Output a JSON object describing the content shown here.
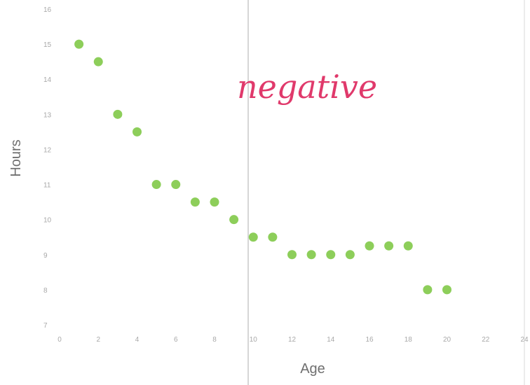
{
  "chart_data": {
    "type": "scatter",
    "title": "",
    "xlabel": "Age",
    "ylabel": "Hours",
    "xlim": [
      0,
      24
    ],
    "ylim": [
      7,
      16
    ],
    "x_ticks": [
      "0",
      "2",
      "4",
      "6",
      "8",
      "10",
      "12",
      "14",
      "16",
      "18",
      "20",
      "22",
      "24"
    ],
    "y_ticks": [
      "7",
      "8",
      "9",
      "10",
      "11",
      "12",
      "13",
      "14",
      "15",
      "16"
    ],
    "series": [
      {
        "color": "#8dce5a",
        "points": [
          {
            "x": 1,
            "y": 15
          },
          {
            "x": 2,
            "y": 14.5
          },
          {
            "x": 3,
            "y": 13
          },
          {
            "x": 4,
            "y": 12.5
          },
          {
            "x": 5,
            "y": 11
          },
          {
            "x": 6,
            "y": 11
          },
          {
            "x": 7,
            "y": 10.5
          },
          {
            "x": 8,
            "y": 10.5
          },
          {
            "x": 9,
            "y": 10
          },
          {
            "x": 10,
            "y": 9.5
          },
          {
            "x": 11,
            "y": 9.5
          },
          {
            "x": 12,
            "y": 9
          },
          {
            "x": 13,
            "y": 9
          },
          {
            "x": 14,
            "y": 9
          },
          {
            "x": 15,
            "y": 9
          },
          {
            "x": 16,
            "y": 9.25
          },
          {
            "x": 17,
            "y": 9.25
          },
          {
            "x": 18,
            "y": 9.25
          },
          {
            "x": 19,
            "y": 8
          },
          {
            "x": 20,
            "y": 8
          }
        ]
      }
    ],
    "annotations": [
      {
        "text": "negative",
        "handwritten": true,
        "color": "#e0396b"
      }
    ],
    "grid": false
  }
}
